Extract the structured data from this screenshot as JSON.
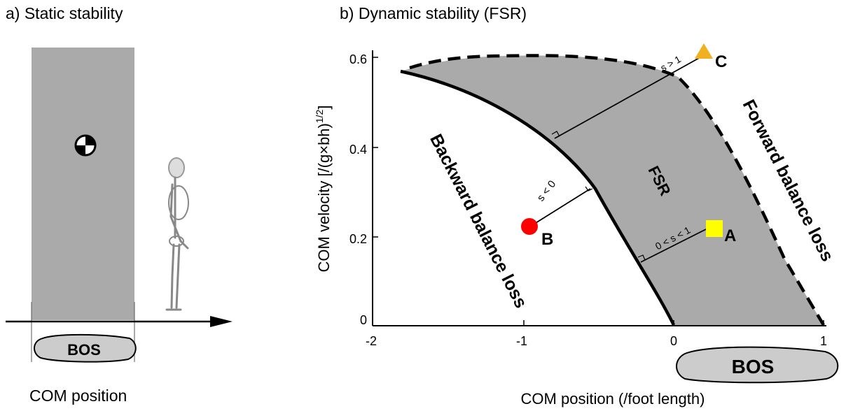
{
  "panel_a": {
    "title": "a) Static stability",
    "bos_label": "BOS",
    "xlabel": "COM position",
    "colors": {
      "region": "#aaaaaa",
      "bos_fill": "#cccccc"
    },
    "icons": [
      "center-of-mass-icon",
      "skeleton-figure"
    ]
  },
  "panel_b": {
    "title": "b) Dynamic stability (FSR)",
    "xlabel": "COM position (/foot length)",
    "ylabel": "COM velocity [/(g×bh)",
    "ylabel_superscript": "1/2",
    "ylabel_close": "]",
    "x_ticks": [
      "-2",
      "-1",
      "0",
      "1"
    ],
    "y_ticks": [
      "0",
      "0.2",
      "0.4",
      "0.6"
    ],
    "fsr_label": "FSR",
    "backward_label": "Backward balance loss",
    "forward_label": "Forward balance loss",
    "bos_label": "BOS",
    "colors": {
      "fsr_fill": "#aaaaaa",
      "bos_fill": "#cccccc"
    }
  },
  "chart_data": {
    "type": "scatter",
    "xlim": [
      -2,
      1
    ],
    "ylim": [
      0,
      0.6
    ],
    "grid": false,
    "region": {
      "name": "FSR",
      "lower_boundary": [
        [
          -1.8,
          0.56
        ],
        [
          -1.3,
          0.5
        ],
        [
          -0.8,
          0.4
        ],
        [
          -0.5,
          0.3
        ],
        [
          -0.3,
          0.2
        ],
        [
          -0.15,
          0.12
        ],
        [
          0,
          0
        ]
      ],
      "upper_boundary": [
        [
          -1.75,
          0.57
        ],
        [
          -1.2,
          0.6
        ],
        [
          -0.6,
          0.6
        ],
        [
          -0.2,
          0.57
        ],
        [
          0.15,
          0.49
        ],
        [
          0.45,
          0.35
        ],
        [
          0.7,
          0.2
        ],
        [
          0.9,
          0.08
        ],
        [
          1,
          0
        ]
      ]
    },
    "points": [
      {
        "label": "A",
        "x": 0.26,
        "y": 0.2,
        "marker": "square",
        "color": "#ffff00",
        "annotation": "0 < s < 1"
      },
      {
        "label": "B",
        "x": -0.97,
        "y": 0.2,
        "marker": "circle",
        "color": "#ff0000",
        "annotation": "s < 0"
      },
      {
        "label": "C",
        "x": 0.2,
        "y": 0.59,
        "marker": "triangle",
        "color": "#f0b020",
        "annotation": "s > 1"
      }
    ]
  }
}
